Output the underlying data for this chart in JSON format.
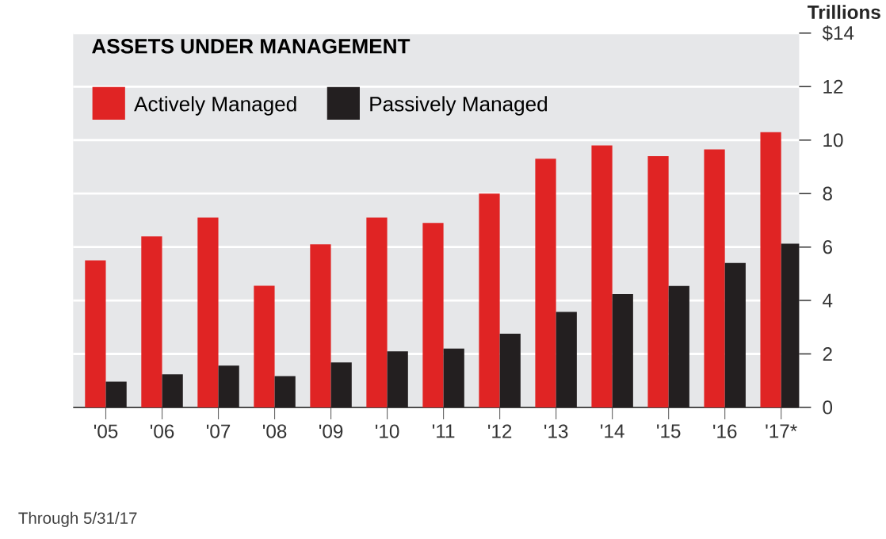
{
  "chart_data": {
    "type": "bar",
    "title": "ASSETS UNDER MANAGEMENT",
    "ylabel": "Trillions",
    "categories": [
      "'05",
      "'06",
      "'07",
      "'08",
      "'09",
      "'10",
      "'11",
      "'12",
      "'13",
      "'14",
      "'15",
      "'16",
      "'17*"
    ],
    "series": [
      {
        "name": "Actively Managed",
        "color": "#e02424",
        "values": [
          5.5,
          6.4,
          7.1,
          4.55,
          6.1,
          7.1,
          6.9,
          8.0,
          9.3,
          9.8,
          9.4,
          9.65,
          10.3
        ]
      },
      {
        "name": "Passively Managed",
        "color": "#231f20",
        "values": [
          0.96,
          1.24,
          1.56,
          1.17,
          1.68,
          2.1,
          2.2,
          2.76,
          3.57,
          4.24,
          4.54,
          5.4,
          6.13
        ]
      }
    ],
    "ylim": [
      0,
      14
    ],
    "yticks": [
      0,
      2,
      4,
      6,
      8,
      10,
      12,
      {
        "value": 14,
        "label": "$14"
      }
    ],
    "grid": "y",
    "legend": "top left",
    "annotations": [
      "Through 5/31/17"
    ]
  }
}
